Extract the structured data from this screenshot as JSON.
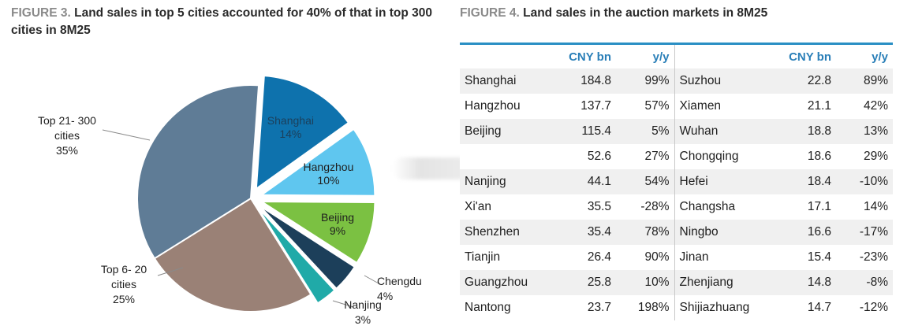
{
  "figure_left": {
    "number": "FIGURE 3.",
    "title": "Land sales in top 5 cities accounted for 40% of that in top 300 cities in 8M25"
  },
  "figure_right": {
    "number": "FIGURE 4.",
    "title": "Land sales in the auction markets in 8M25"
  },
  "colors": {
    "shanghai": "#0e72ad",
    "hangzhou": "#5fc6ef",
    "beijing": "#7bc142",
    "chengdu": "#1c3f5a",
    "nanjing": "#20aaa8",
    "top6_20": "#9a8176",
    "top21_300": "#5f7c96",
    "table_header": "#2a7fb8",
    "table_rule": "#2a8fc4"
  },
  "chart_data": [
    {
      "type": "pie",
      "title": "Land sales in top 5 cities accounted for 40% of that in top 300 cities in 8M25",
      "slices": [
        {
          "key": "shanghai",
          "label": "Shanghai",
          "pct_label": "14%",
          "value": 14,
          "exploded": true
        },
        {
          "key": "hangzhou",
          "label": "Hangzhou",
          "pct_label": "10%",
          "value": 10,
          "exploded": true
        },
        {
          "key": "beijing",
          "label": "Beijing",
          "pct_label": "9%",
          "value": 9,
          "exploded": true
        },
        {
          "key": "chengdu",
          "label": "Chengdu",
          "pct_label": "4%",
          "value": 4,
          "exploded": true
        },
        {
          "key": "nanjing",
          "label": "Nanjing",
          "pct_label": "3%",
          "value": 3,
          "exploded": true
        },
        {
          "key": "top6_20",
          "label": "Top 6- 20 cities",
          "pct_label": "25%",
          "value": 25,
          "exploded": false
        },
        {
          "key": "top21_300",
          "label": "Top 21- 300 cities",
          "pct_label": "35%",
          "value": 35,
          "exploded": false
        }
      ]
    },
    {
      "type": "table",
      "title": "Land sales in the auction markets in 8M25",
      "columns": [
        "",
        "CNY bn",
        "y/y",
        "",
        "CNY bn",
        "y/y"
      ],
      "rows": [
        [
          "Shanghai",
          "184.8",
          "99%",
          "Suzhou",
          "22.8",
          "89%"
        ],
        [
          "Hangzhou",
          "137.7",
          "57%",
          "Xiamen",
          "21.1",
          "42%"
        ],
        [
          "Beijing",
          "115.4",
          "5%",
          "Wuhan",
          "18.8",
          "13%"
        ],
        [
          "",
          "52.6",
          "27%",
          "Chongqing",
          "18.6",
          "29%"
        ],
        [
          "Nanjing",
          "44.1",
          "54%",
          "Hefei",
          "18.4",
          "-10%"
        ],
        [
          "Xi'an",
          "35.5",
          "-28%",
          "Changsha",
          "17.1",
          "14%"
        ],
        [
          "Shenzhen",
          "35.4",
          "78%",
          "Ningbo",
          "16.6",
          "-17%"
        ],
        [
          "Tianjin",
          "26.4",
          "90%",
          "Jinan",
          "15.4",
          "-23%"
        ],
        [
          "Guangzhou",
          "25.8",
          "10%",
          "Zhenjiang",
          "14.8",
          "-8%"
        ],
        [
          "Nantong",
          "23.7",
          "198%",
          "Shijiazhuang",
          "14.7",
          "-12%"
        ]
      ]
    }
  ]
}
